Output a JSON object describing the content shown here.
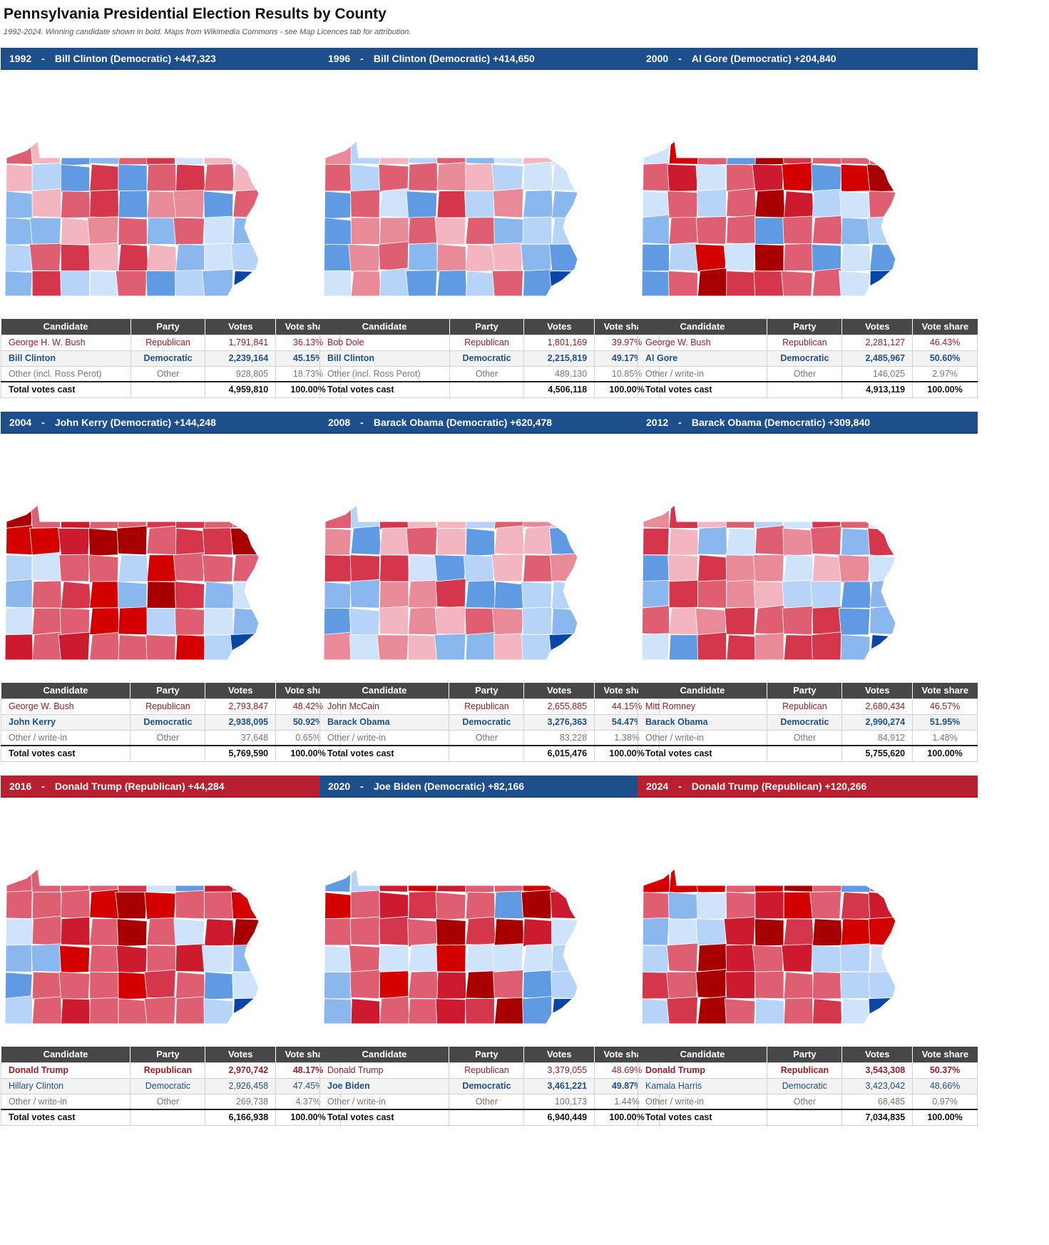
{
  "title": "Pennsylvania Presidential Election Results by County",
  "subtitle": "1992-2024. Winning candidate shown in bold. Maps from Wikimedia Commons - see Map Licences tab for attribution.",
  "table_headers": [
    "Candidate",
    "Party",
    "Votes",
    "Vote share"
  ],
  "colors": {
    "dem_banner": "#1d4f8c",
    "rep_banner": "#b8202f",
    "header_bg": "#474747",
    "rep_text": "#9b1c22",
    "dem_text": "#1d4f8c"
  },
  "elections": [
    {
      "year": "1992",
      "winner": "Bill Clinton (Democratic) +447,323",
      "winner_party": "dem",
      "rows": [
        {
          "candidate": "George H. W. Bush",
          "party": "Republican",
          "votes": "1,791,841",
          "share": "36.13%",
          "cls": "rep",
          "win": false
        },
        {
          "candidate": "Bill Clinton",
          "party": "Democratic",
          "votes": "2,239,164",
          "share": "45.15%",
          "cls": "dem",
          "win": true
        },
        {
          "candidate": "Other (incl. Ross Perot)",
          "party": "Other",
          "votes": "928,805",
          "share": "18.73%",
          "cls": "oth",
          "win": false
        }
      ],
      "total_label": "Total votes cast",
      "total_votes": "4,959,810",
      "total_share": "100.00%"
    },
    {
      "year": "1996",
      "winner": "Bill Clinton (Democratic) +414,650",
      "winner_party": "dem",
      "rows": [
        {
          "candidate": "Bob Dole",
          "party": "Republican",
          "votes": "1,801,169",
          "share": "39.97%",
          "cls": "rep",
          "win": false
        },
        {
          "candidate": "Bill Clinton",
          "party": "Democratic",
          "votes": "2,215,819",
          "share": "49.17%",
          "cls": "dem",
          "win": true
        },
        {
          "candidate": "Other (incl. Ross Perot)",
          "party": "Other",
          "votes": "489,130",
          "share": "10.85%",
          "cls": "oth",
          "win": false
        }
      ],
      "total_label": "Total votes cast",
      "total_votes": "4,506,118",
      "total_share": "100.00%"
    },
    {
      "year": "2000",
      "winner": "Al Gore (Democratic) +204,840",
      "winner_party": "dem",
      "rows": [
        {
          "candidate": "George W. Bush",
          "party": "Republican",
          "votes": "2,281,127",
          "share": "46.43%",
          "cls": "rep",
          "win": false
        },
        {
          "candidate": "Al Gore",
          "party": "Democratic",
          "votes": "2,485,967",
          "share": "50.60%",
          "cls": "dem",
          "win": true
        },
        {
          "candidate": "Other / write-in",
          "party": "Other",
          "votes": "146,025",
          "share": "2.97%",
          "cls": "oth",
          "win": false
        }
      ],
      "total_label": "Total votes cast",
      "total_votes": "4,913,119",
      "total_share": "100.00%"
    },
    {
      "year": "2004",
      "winner": "John Kerry (Democratic) +144,248",
      "winner_party": "dem",
      "rows": [
        {
          "candidate": "George W. Bush",
          "party": "Republican",
          "votes": "2,793,847",
          "share": "48.42%",
          "cls": "rep",
          "win": false
        },
        {
          "candidate": "John Kerry",
          "party": "Democratic",
          "votes": "2,938,095",
          "share": "50.92%",
          "cls": "dem",
          "win": true
        },
        {
          "candidate": "Other / write-in",
          "party": "Other",
          "votes": "37,648",
          "share": "0.65%",
          "cls": "oth",
          "win": false
        }
      ],
      "total_label": "Total votes cast",
      "total_votes": "5,769,590",
      "total_share": "100.00%"
    },
    {
      "year": "2008",
      "winner": "Barack Obama (Democratic) +620,478",
      "winner_party": "dem",
      "rows": [
        {
          "candidate": "John McCain",
          "party": "Republican",
          "votes": "2,655,885",
          "share": "44.15%",
          "cls": "rep",
          "win": false
        },
        {
          "candidate": "Barack Obama",
          "party": "Democratic",
          "votes": "3,276,363",
          "share": "54.47%",
          "cls": "dem",
          "win": true
        },
        {
          "candidate": "Other / write-in",
          "party": "Other",
          "votes": "83,228",
          "share": "1.38%",
          "cls": "oth",
          "win": false
        }
      ],
      "total_label": "Total votes cast",
      "total_votes": "6,015,476",
      "total_share": "100.00%"
    },
    {
      "year": "2012",
      "winner": "Barack Obama (Democratic) +309,840",
      "winner_party": "dem",
      "rows": [
        {
          "candidate": "Mitt Romney",
          "party": "Republican",
          "votes": "2,680,434",
          "share": "46.57%",
          "cls": "rep",
          "win": false
        },
        {
          "candidate": "Barack Obama",
          "party": "Democratic",
          "votes": "2,990,274",
          "share": "51.95%",
          "cls": "dem",
          "win": true
        },
        {
          "candidate": "Other / write-in",
          "party": "Other",
          "votes": "84,912",
          "share": "1.48%",
          "cls": "oth",
          "win": false
        }
      ],
      "total_label": "Total votes cast",
      "total_votes": "5,755,620",
      "total_share": "100.00%"
    },
    {
      "year": "2016",
      "winner": "Donald Trump (Republican) +44,284",
      "winner_party": "rep",
      "rows": [
        {
          "candidate": "Donald Trump",
          "party": "Republican",
          "votes": "2,970,742",
          "share": "48.17%",
          "cls": "rep",
          "win": true
        },
        {
          "candidate": "Hillary Clinton",
          "party": "Democratic",
          "votes": "2,926,458",
          "share": "47.45%",
          "cls": "dem",
          "win": false
        },
        {
          "candidate": "Other / write-in",
          "party": "Other",
          "votes": "269,738",
          "share": "4.37%",
          "cls": "oth",
          "win": false
        }
      ],
      "total_label": "Total votes cast",
      "total_votes": "6,166,938",
      "total_share": "100.00%"
    },
    {
      "year": "2020",
      "winner": "Joe Biden (Democratic) +82,166",
      "winner_party": "dem",
      "rows": [
        {
          "candidate": "Donald Trump",
          "party": "Republican",
          "votes": "3,379,055",
          "share": "48.69%",
          "cls": "rep",
          "win": false
        },
        {
          "candidate": "Joe Biden",
          "party": "Democratic",
          "votes": "3,461,221",
          "share": "49.87%",
          "cls": "dem",
          "win": true
        },
        {
          "candidate": "Other / write-in",
          "party": "Other",
          "votes": "100,173",
          "share": "1.44%",
          "cls": "oth",
          "win": false
        }
      ],
      "total_label": "Total votes cast",
      "total_votes": "6,940,449",
      "total_share": "100.00%"
    },
    {
      "year": "2024",
      "winner": "Donald Trump (Republican) +120,266",
      "winner_party": "rep",
      "rows": [
        {
          "candidate": "Donald Trump",
          "party": "Republican",
          "votes": "3,543,308",
          "share": "50.37%",
          "cls": "rep",
          "win": true
        },
        {
          "candidate": "Kamala Harris",
          "party": "Democratic",
          "votes": "3,423,042",
          "share": "48.66%",
          "cls": "dem",
          "win": false
        },
        {
          "candidate": "Other / write-in",
          "party": "Other",
          "votes": "68,485",
          "share": "0.97%",
          "cls": "oth",
          "win": false
        }
      ],
      "total_label": "Total votes cast",
      "total_votes": "7,034,835",
      "total_share": "100.00%"
    }
  ]
}
